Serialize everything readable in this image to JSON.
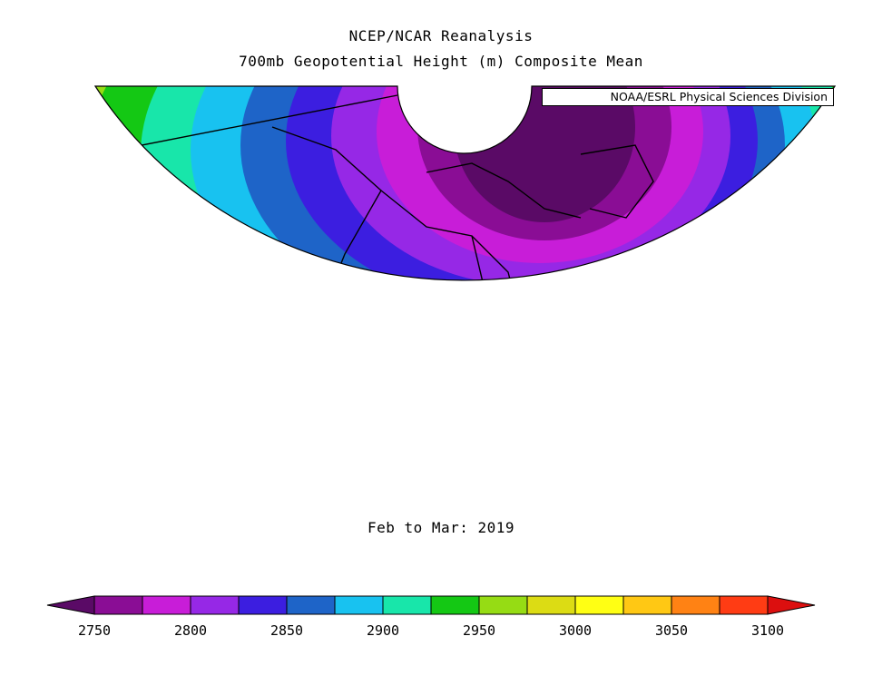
{
  "title_line1": "NCEP/NCAR Reanalysis",
  "title_line2": "700mb Geopotential Height (m) Composite Mean",
  "credit": "NOAA/ESRL Physical Sciences Division",
  "period": "Feb to Mar: 2019",
  "colorbar": {
    "unit": "m",
    "levels": [
      2750,
      2775,
      2800,
      2825,
      2850,
      2875,
      2900,
      2925,
      2950,
      2975,
      3000,
      3025,
      3050,
      3075,
      3100
    ],
    "colors": [
      "#5a0a66",
      "#8a0d95",
      "#c81dd8",
      "#9628e6",
      "#3c1ee0",
      "#1e64c8",
      "#18c2f0",
      "#18e6aa",
      "#14c814",
      "#96dc14",
      "#dcdc14",
      "#ffff14",
      "#ffc814",
      "#ff8214",
      "#ff3c14",
      "#dc0f0f"
    ],
    "tick_labels": [
      "2750",
      "2800",
      "2850",
      "2900",
      "2950",
      "3000",
      "3050",
      "3100"
    ]
  }
}
